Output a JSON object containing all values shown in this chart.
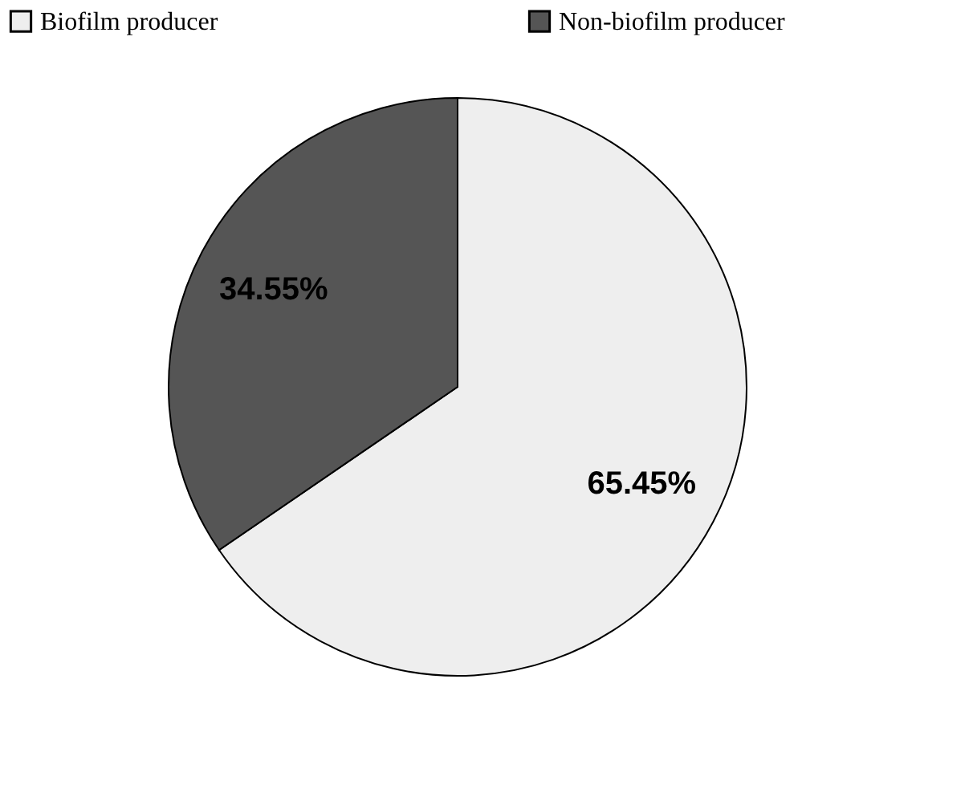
{
  "chart_data": {
    "type": "pie",
    "categories": [
      "Biofilm producer",
      "Non-biofilm producer"
    ],
    "values": [
      65.45,
      34.55
    ],
    "value_labels": [
      "65.45%",
      "34.55%"
    ],
    "colors": [
      "#eeeeee",
      "#555555"
    ],
    "legend": "top"
  }
}
